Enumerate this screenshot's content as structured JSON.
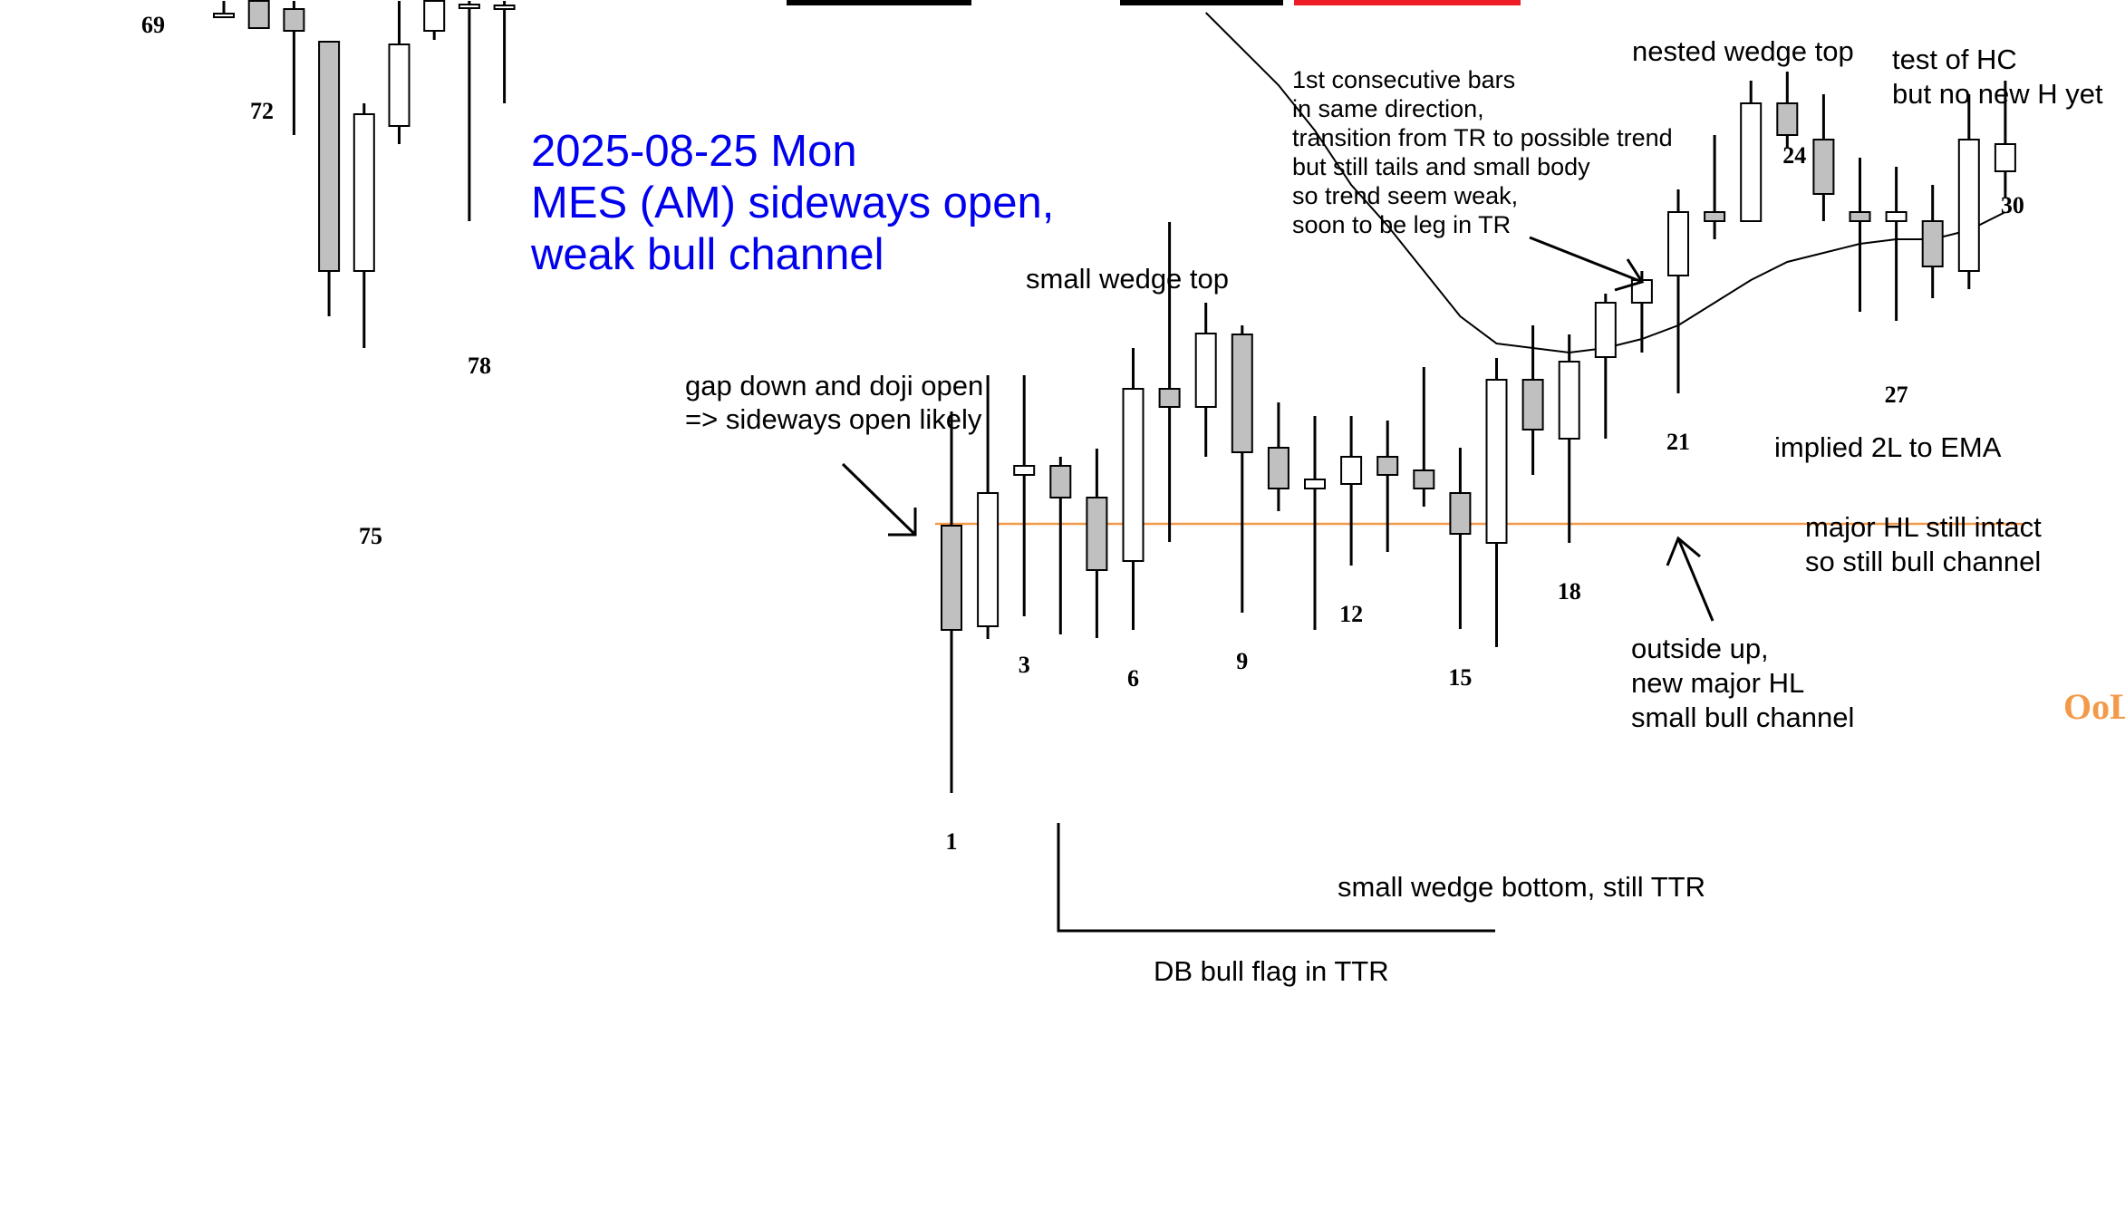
{
  "colors": {
    "bull": "#ffffff",
    "bear": "#c0c0c0",
    "outline": "#000000",
    "title": "#0000ee",
    "level": "#f39a4a",
    "accent_red": "#ee1c24"
  },
  "chart_data": {
    "type": "candlestick",
    "title": "2025-08-25 Mon\nMES (AM) sideways open,\nweak bull channel",
    "xlabel": "",
    "ylabel": "",
    "ylim": [
      0,
      100
    ],
    "grid": false,
    "legend": "none",
    "level_label": "OoL",
    "level_value": 42.2,
    "bar_numbers": [
      {
        "label": "69",
        "bar": 69
      },
      {
        "label": "72",
        "bar": 72
      },
      {
        "label": "75",
        "bar": 75
      },
      {
        "label": "78",
        "bar": 78
      },
      {
        "label": "1",
        "bar": 1
      },
      {
        "label": "3",
        "bar": 3
      },
      {
        "label": "6",
        "bar": 6
      },
      {
        "label": "9",
        "bar": 9
      },
      {
        "label": "12",
        "bar": 12
      },
      {
        "label": "15",
        "bar": 15
      },
      {
        "label": "18",
        "bar": 18
      },
      {
        "label": "21",
        "bar": 21
      },
      {
        "label": "24",
        "bar": 24
      },
      {
        "label": "27",
        "bar": 27
      },
      {
        "label": "30",
        "bar": 30
      }
    ],
    "prev_session": [
      {
        "bar": 67,
        "open": 98.5,
        "high": 99.9,
        "low": 98.5,
        "close": 98.5
      },
      {
        "bar": 68,
        "open": 99.9,
        "high": 99.9,
        "low": 96.9,
        "close": 96.9
      },
      {
        "bar": 69,
        "open": 99.0,
        "high": 99.9,
        "low": 85.1,
        "close": 96.6
      },
      {
        "bar": 70,
        "open": 95.4,
        "high": 95.4,
        "low": 65.1,
        "close": 70.1
      },
      {
        "bar": 71,
        "open": 70.1,
        "high": 88.6,
        "low": 61.6,
        "close": 87.4
      },
      {
        "bar": 72,
        "open": 86.1,
        "high": 99.9,
        "low": 84.1,
        "close": 95.1
      },
      {
        "bar": 73,
        "open": 96.6,
        "high": 99.9,
        "low": 95.6,
        "close": 99.9
      },
      {
        "bar": 74,
        "open": 99.5,
        "high": 99.9,
        "low": 75.6,
        "close": 99.5
      },
      {
        "bar": 75,
        "open": 99.4,
        "high": 99.9,
        "low": 88.6,
        "close": 99.4
      }
    ],
    "session": [
      {
        "bar": 1,
        "open": 42.0,
        "high": 54.6,
        "low": 12.5,
        "close": 30.5
      },
      {
        "bar": 2,
        "open": 30.9,
        "high": 58.6,
        "low": 29.5,
        "close": 45.6
      },
      {
        "bar": 3,
        "open": 47.6,
        "high": 58.6,
        "low": 32.0,
        "close": 48.6
      },
      {
        "bar": 4,
        "open": 48.6,
        "high": 49.6,
        "low": 30.0,
        "close": 45.1
      },
      {
        "bar": 5,
        "open": 45.1,
        "high": 50.5,
        "low": 29.6,
        "close": 37.1
      },
      {
        "bar": 6,
        "open": 38.1,
        "high": 61.6,
        "low": 30.5,
        "close": 57.1
      },
      {
        "bar": 7,
        "open": 57.1,
        "high": 75.5,
        "low": 40.2,
        "close": 55.1
      },
      {
        "bar": 8,
        "open": 55.1,
        "high": 66.6,
        "low": 49.6,
        "close": 63.2
      },
      {
        "bar": 9,
        "open": 63.1,
        "high": 64.1,
        "low": 32.4,
        "close": 50.1
      },
      {
        "bar": 10,
        "open": 50.6,
        "high": 55.6,
        "low": 43.6,
        "close": 46.1
      },
      {
        "bar": 11,
        "open": 46.1,
        "high": 54.1,
        "low": 30.5,
        "close": 47.1
      },
      {
        "bar": 12,
        "open": 46.6,
        "high": 54.1,
        "low": 37.6,
        "close": 49.6
      },
      {
        "bar": 13,
        "open": 49.6,
        "high": 53.6,
        "low": 39.1,
        "close": 47.6
      },
      {
        "bar": 14,
        "open": 48.1,
        "high": 59.5,
        "low": 44.1,
        "close": 46.1
      },
      {
        "bar": 15,
        "open": 45.6,
        "high": 50.6,
        "low": 30.6,
        "close": 41.1
      },
      {
        "bar": 16,
        "open": 40.1,
        "high": 60.5,
        "low": 28.6,
        "close": 58.1
      },
      {
        "bar": 17,
        "open": 58.1,
        "high": 64.1,
        "low": 47.6,
        "close": 52.6
      },
      {
        "bar": 18,
        "open": 51.6,
        "high": 63.1,
        "low": 40.1,
        "close": 60.1
      },
      {
        "bar": 19,
        "open": 60.6,
        "high": 67.6,
        "low": 51.6,
        "close": 66.6
      },
      {
        "bar": 20,
        "open": 66.6,
        "high": 70.1,
        "low": 61.1,
        "close": 69.1
      },
      {
        "bar": 21,
        "open": 69.6,
        "high": 79.1,
        "low": 56.6,
        "close": 76.6
      },
      {
        "bar": 22,
        "open": 76.6,
        "high": 85.1,
        "low": 73.6,
        "close": 75.6
      },
      {
        "bar": 23,
        "open": 75.6,
        "high": 91.1,
        "low": 75.6,
        "close": 88.6
      },
      {
        "bar": 24,
        "open": 88.6,
        "high": 92.1,
        "low": 83.6,
        "close": 85.1
      },
      {
        "bar": 25,
        "open": 84.6,
        "high": 89.6,
        "low": 75.6,
        "close": 78.6
      },
      {
        "bar": 26,
        "open": 76.6,
        "high": 82.6,
        "low": 65.6,
        "close": 75.6
      },
      {
        "bar": 27,
        "open": 75.6,
        "high": 81.6,
        "low": 64.6,
        "close": 76.6
      },
      {
        "bar": 28,
        "open": 75.6,
        "high": 79.6,
        "low": 67.1,
        "close": 70.6
      },
      {
        "bar": 29,
        "open": 70.1,
        "high": 89.6,
        "low": 68.1,
        "close": 84.6
      },
      {
        "bar": 30,
        "open": 81.1,
        "high": 91.1,
        "low": 78.1,
        "close": 84.1
      }
    ],
    "ema": [
      {
        "bar": 8,
        "value": 98.6
      },
      {
        "bar": 10,
        "value": 90.6
      },
      {
        "bar": 11,
        "value": 85.6
      },
      {
        "bar": 12,
        "value": 79.6
      },
      {
        "bar": 13,
        "value": 75.1
      },
      {
        "bar": 14,
        "value": 70.1
      },
      {
        "bar": 15,
        "value": 65.1
      },
      {
        "bar": 16,
        "value": 62.1
      },
      {
        "bar": 17,
        "value": 61.6
      },
      {
        "bar": 18,
        "value": 61.1
      },
      {
        "bar": 19,
        "value": 61.6
      },
      {
        "bar": 20,
        "value": 62.6
      },
      {
        "bar": 21,
        "value": 64.1
      },
      {
        "bar": 22,
        "value": 66.6
      },
      {
        "bar": 23,
        "value": 69.1
      },
      {
        "bar": 24,
        "value": 71.1
      },
      {
        "bar": 25,
        "value": 72.1
      },
      {
        "bar": 26,
        "value": 73.1
      },
      {
        "bar": 27,
        "value": 73.6
      },
      {
        "bar": 28,
        "value": 73.6
      },
      {
        "bar": 29,
        "value": 74.6
      },
      {
        "bar": 30,
        "value": 76.6
      }
    ],
    "annotations": [
      {
        "id": "gap-down",
        "lines": [
          "gap down and doji open",
          "=> sideways open likely"
        ]
      },
      {
        "id": "small-wedge-top",
        "lines": [
          "small wedge top"
        ]
      },
      {
        "id": "first-consecutive",
        "lines": [
          "1st consecutive bars",
          "in same direction,",
          "transition from TR to possible trend",
          "but still tails and small body",
          "so trend seem weak,",
          "soon to be leg in TR"
        ]
      },
      {
        "id": "nested-wedge-top",
        "lines": [
          "nested wedge top"
        ]
      },
      {
        "id": "test-hc",
        "lines": [
          "test of HC",
          "but no new H yet"
        ]
      },
      {
        "id": "implied-2l",
        "lines": [
          "implied 2L to EMA"
        ]
      },
      {
        "id": "major-hl",
        "lines": [
          "major HL still intact",
          "so still bull channel"
        ]
      },
      {
        "id": "outside-up",
        "lines": [
          "outside up,",
          "new major HL",
          "small bull channel"
        ]
      },
      {
        "id": "small-wedge-bottom",
        "lines": [
          "small wedge bottom, still TTR"
        ]
      },
      {
        "id": "db-bull-flag",
        "lines": [
          "DB bull flag in TTR"
        ]
      }
    ]
  }
}
